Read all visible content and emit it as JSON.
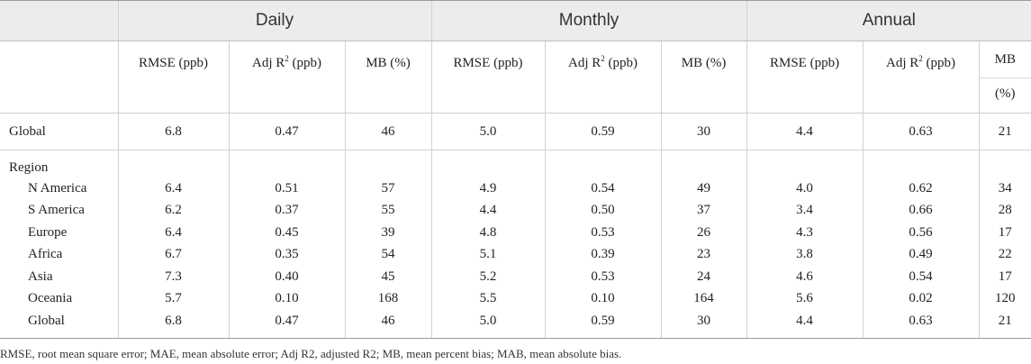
{
  "groups": [
    "Daily",
    "Monthly",
    "Annual"
  ],
  "subheaders": {
    "rmse": "RMSE (ppb)",
    "adj": "Adj R",
    "adj_sup": "2",
    "adj_unit": " (ppb)",
    "mb": "MB (%)",
    "mb_annual_top": "MB",
    "mb_annual_bottom": "(%)"
  },
  "global_top": {
    "label": "Global",
    "values": [
      "6.8",
      "0.47",
      "46",
      "5.0",
      "0.59",
      "30",
      "4.4",
      "0.63",
      "21"
    ]
  },
  "region_header": "Region",
  "rows": [
    {
      "label": "N America",
      "values": [
        "6.4",
        "0.51",
        "57",
        "4.9",
        "0.54",
        "49",
        "4.0",
        "0.62",
        "34"
      ]
    },
    {
      "label": "S America",
      "values": [
        "6.2",
        "0.37",
        "55",
        "4.4",
        "0.50",
        "37",
        "3.4",
        "0.66",
        "28"
      ]
    },
    {
      "label": "Europe",
      "values": [
        "6.4",
        "0.45",
        "39",
        "4.8",
        "0.53",
        "26",
        "4.3",
        "0.56",
        "17"
      ]
    },
    {
      "label": "Africa",
      "values": [
        "6.7",
        "0.35",
        "54",
        "5.1",
        "0.39",
        "23",
        "3.8",
        "0.49",
        "22"
      ]
    },
    {
      "label": "Asia",
      "values": [
        "7.3",
        "0.40",
        "45",
        "5.2",
        "0.53",
        "24",
        "4.6",
        "0.54",
        "17"
      ]
    },
    {
      "label": "Oceania",
      "values": [
        "5.7",
        "0.10",
        "168",
        "5.5",
        "0.10",
        "164",
        "5.6",
        "0.02",
        "120"
      ]
    },
    {
      "label": "Global",
      "values": [
        "6.8",
        "0.47",
        "46",
        "5.0",
        "0.59",
        "30",
        "4.4",
        "0.63",
        "21"
      ]
    }
  ],
  "footnote": "RMSE, root mean square error; MAE, mean absolute error; Adj R2, adjusted R2; MB, mean percent bias; MAB, mean absolute bias."
}
